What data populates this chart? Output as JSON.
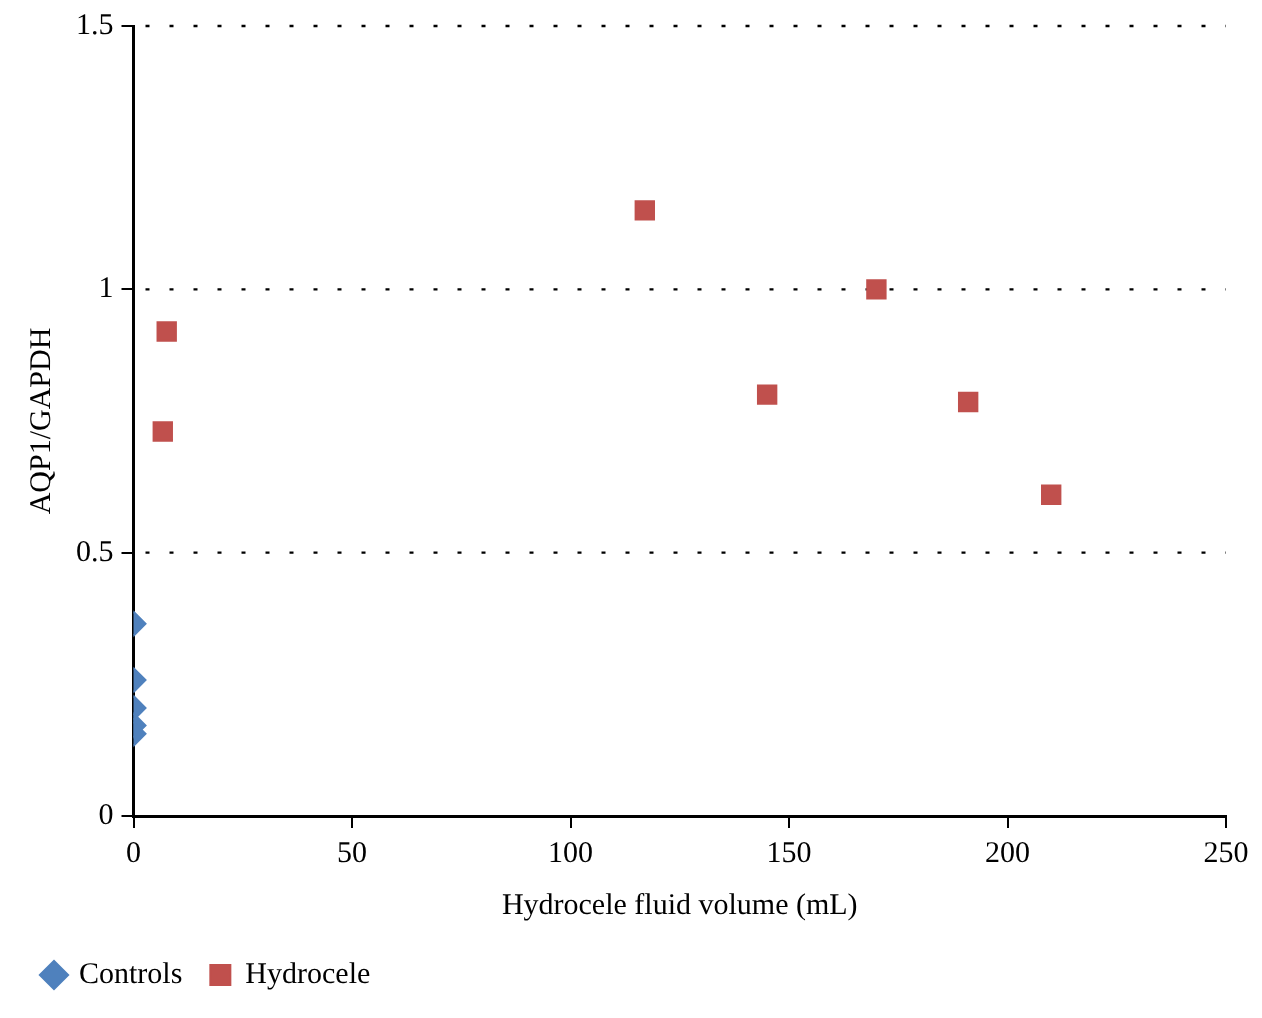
{
  "chart_data": {
    "type": "scatter",
    "xlabel": "Hydrocele fluid volume (mL)",
    "ylabel": "AQP1/GAPDH",
    "xlim": [
      0,
      250
    ],
    "xticks": [
      0,
      50,
      100,
      150,
      200,
      250
    ],
    "ylim": [
      0,
      1.5
    ],
    "yticks": [
      0,
      0.5,
      1,
      1.5
    ],
    "grid": "y",
    "legend": "bottom left",
    "series": [
      {
        "name": "Controls",
        "color": "#4f81bd",
        "marker": "diamond",
        "x": [
          0,
          0,
          0,
          0,
          0
        ],
        "values": [
          0.365,
          0.258,
          0.205,
          0.172,
          0.156
        ]
      },
      {
        "name": "Hydrocele",
        "color": "#c0504d",
        "marker": "square",
        "x": [
          6.7,
          7.6,
          117,
          145,
          170,
          191,
          210
        ],
        "values": [
          0.73,
          0.92,
          1.15,
          0.8,
          1.0,
          0.786,
          0.61
        ]
      }
    ]
  }
}
